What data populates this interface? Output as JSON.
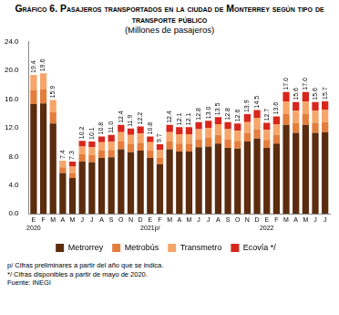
{
  "chart_data": {
    "type": "bar",
    "title": "Gráfico 6. Pasajeros transportados en la ciudad de Monterrey según tipo de transporte público",
    "subtitle": "(Millones de pasajeros)",
    "categories": [
      [
        "E",
        "2020"
      ],
      "F",
      "M",
      "A",
      "M",
      "J",
      "J",
      "A",
      "S",
      "O",
      "N",
      "D",
      [
        "E",
        "2021p/"
      ],
      "F",
      "M",
      "A",
      "M",
      "J",
      "J",
      "A",
      "S",
      "O",
      "N",
      "D",
      [
        "E",
        "2022"
      ],
      "F",
      "M",
      "A",
      "M",
      "J",
      "J"
    ],
    "series": [
      {
        "name": "Metrorrey",
        "color": "#5b2c0e",
        "values": [
          15.3,
          15.4,
          12.6,
          5.7,
          5.0,
          7.3,
          7.2,
          7.8,
          7.9,
          9.0,
          8.6,
          8.8,
          7.8,
          6.9,
          9.0,
          8.7,
          8.7,
          9.3,
          9.4,
          9.8,
          9.2,
          9.1,
          10.1,
          10.5,
          9.2,
          9.8,
          12.4,
          11.3,
          12.4,
          11.3,
          11.4
        ]
      },
      {
        "name": "Metrobús",
        "color": "#e47e3c",
        "values": [
          2.0,
          2.0,
          1.6,
          0.8,
          0.7,
          1.0,
          1.0,
          1.0,
          1.0,
          1.1,
          1.1,
          1.1,
          1.0,
          0.9,
          1.1,
          1.1,
          1.1,
          1.1,
          1.2,
          1.2,
          1.2,
          1.1,
          1.2,
          1.3,
          1.1,
          1.2,
          1.5,
          1.4,
          1.5,
          1.4,
          1.4
        ]
      },
      {
        "name": "Transmetro",
        "color": "#f6a66a",
        "values": [
          2.1,
          2.2,
          1.7,
          0.9,
          0.9,
          1.1,
          1.1,
          1.2,
          1.2,
          1.3,
          1.3,
          1.3,
          1.2,
          1.1,
          1.3,
          1.3,
          1.3,
          1.4,
          1.4,
          1.5,
          1.4,
          1.4,
          1.5,
          1.6,
          1.4,
          1.5,
          1.8,
          1.7,
          1.8,
          1.7,
          1.7
        ]
      },
      {
        "name": "Ecovía */",
        "color": "#d8261c",
        "values": [
          null,
          null,
          null,
          null,
          0.7,
          0.8,
          0.8,
          0.8,
          0.9,
          1.0,
          0.9,
          1.0,
          0.8,
          0.8,
          1.0,
          1.0,
          1.0,
          1.0,
          1.0,
          1.0,
          1.0,
          1.0,
          1.1,
          1.1,
          1.0,
          1.1,
          1.3,
          1.2,
          1.3,
          1.2,
          1.2
        ]
      }
    ],
    "totals": [
      19.4,
      19.6,
      15.9,
      7.4,
      7.3,
      10.2,
      10.1,
      10.8,
      11.0,
      12.4,
      11.9,
      12.2,
      10.8,
      9.7,
      12.4,
      12.1,
      12.1,
      12.8,
      13.0,
      13.5,
      12.8,
      12.6,
      13.9,
      14.5,
      12.7,
      13.6,
      17.0,
      15.6,
      17.0,
      15.6,
      15.7
    ],
    "total_labels": [
      "19.4",
      "19.6",
      "15.9",
      "7.4",
      "7.3",
      "10.2",
      "10.1",
      "10.8",
      "11.0",
      "12.4",
      "11.9",
      "12.2",
      "10.8",
      "9.7",
      "12.4",
      "12.1",
      "12.1",
      "12.8",
      "13.0",
      "13.5",
      "12.8",
      "12.6",
      "13.9",
      "14.5",
      "12.7",
      "13.6",
      "17.0",
      "15.6",
      "17.0",
      "15.6",
      "15.7"
    ],
    "ylim": [
      0,
      24
    ],
    "yticks": [
      {
        "value": 0,
        "label": "0.0"
      },
      {
        "value": 4,
        "label": "4.0"
      },
      {
        "value": 8,
        "label": "8.0"
      },
      {
        "value": 12,
        "label": "12.0"
      },
      {
        "value": 16,
        "label": "16.0"
      },
      {
        "value": 20,
        "label": "20.0"
      },
      {
        "value": 24,
        "label": "24.0"
      }
    ],
    "stacked": true,
    "grid": false,
    "legend": "bottom",
    "notes": [
      "p/ Cifras preliminares a partir del año que se indica.",
      "*/ Cifras disponibles a partir de mayo de 2020.",
      "Fuente: INEGI"
    ]
  }
}
